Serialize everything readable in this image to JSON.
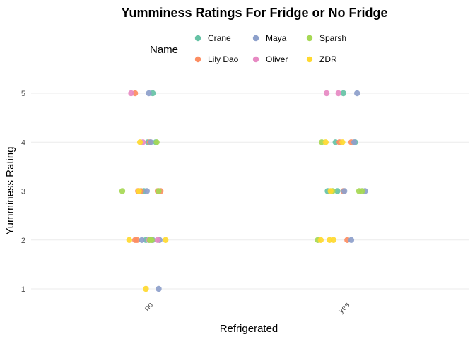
{
  "chart_data": {
    "type": "scatter",
    "title": "Yumminess Ratings For Fridge or No Fridge",
    "xlabel": "Refrigerated",
    "ylabel": "Yumminess Rating",
    "categories": [
      "no",
      "yes"
    ],
    "y_ticks": [
      "1",
      "2",
      "3",
      "4",
      "5"
    ],
    "ylim": [
      0.8,
      5.2
    ],
    "grid": "horizontal major only",
    "legend": {
      "title": "Name",
      "placement": "top",
      "entries": [
        "Crane",
        "Lily Dao",
        "Maya",
        "Oliver",
        "Sparsh",
        "ZDR"
      ]
    },
    "series": [
      {
        "name": "Crane",
        "color": "#66C2A5",
        "points": [
          {
            "x": "no",
            "jitter": 0.08,
            "y": 5
          },
          {
            "x": "no",
            "jitter": 0.03,
            "y": 4
          },
          {
            "x": "no",
            "jitter": -0.01,
            "y": 3
          },
          {
            "x": "no",
            "jitter": 0.01,
            "y": 2
          },
          {
            "x": "no",
            "jitter": 0.11,
            "y": 4
          },
          {
            "x": "yes",
            "jitter": 0.02,
            "y": 5
          },
          {
            "x": "yes",
            "jitter": -0.06,
            "y": 4
          },
          {
            "x": "yes",
            "jitter": 0.14,
            "y": 4
          },
          {
            "x": "yes",
            "jitter": -0.04,
            "y": 3
          },
          {
            "x": "yes",
            "jitter": -0.14,
            "y": 3
          }
        ]
      },
      {
        "name": "Lily Dao",
        "color": "#FC8D62",
        "points": [
          {
            "x": "no",
            "jitter": -0.1,
            "y": 5
          },
          {
            "x": "no",
            "jitter": 0.05,
            "y": 4
          },
          {
            "x": "no",
            "jitter": -0.04,
            "y": 3
          },
          {
            "x": "no",
            "jitter": 0.13,
            "y": 3
          },
          {
            "x": "no",
            "jitter": 0.16,
            "y": 3
          },
          {
            "x": "no",
            "jitter": -0.07,
            "y": 3
          },
          {
            "x": "no",
            "jitter": -0.08,
            "y": 2
          },
          {
            "x": "no",
            "jitter": -0.1,
            "y": 2
          },
          {
            "x": "yes",
            "jitter": -0.02,
            "y": 4
          },
          {
            "x": "yes",
            "jitter": 0.1,
            "y": 4
          },
          {
            "x": "yes",
            "jitter": 0.02,
            "y": 3
          },
          {
            "x": "yes",
            "jitter": 0.06,
            "y": 2
          }
        ]
      },
      {
        "name": "Maya",
        "color": "#8DA0CB",
        "points": [
          {
            "x": "no",
            "jitter": 0.04,
            "y": 5
          },
          {
            "x": "no",
            "jitter": 0.06,
            "y": 4
          },
          {
            "x": "no",
            "jitter": 0.02,
            "y": 3
          },
          {
            "x": "no",
            "jitter": -0.03,
            "y": 2
          },
          {
            "x": "no",
            "jitter": 0.08,
            "y": 2
          },
          {
            "x": "no",
            "jitter": 0.15,
            "y": 2
          },
          {
            "x": "no",
            "jitter": 0.14,
            "y": 1
          },
          {
            "x": "yes",
            "jitter": 0.16,
            "y": 5
          },
          {
            "x": "yes",
            "jitter": 0.13,
            "y": 4
          },
          {
            "x": "yes",
            "jitter": 0.03,
            "y": 3
          },
          {
            "x": "yes",
            "jitter": 0.24,
            "y": 3
          },
          {
            "x": "yes",
            "jitter": 0.1,
            "y": 2
          }
        ]
      },
      {
        "name": "Oliver",
        "color": "#E78AC3",
        "points": [
          {
            "x": "no",
            "jitter": -0.14,
            "y": 5
          },
          {
            "x": "no",
            "jitter": -0.02,
            "y": 4
          },
          {
            "x": "no",
            "jitter": 0.04,
            "y": 2
          },
          {
            "x": "no",
            "jitter": 0.13,
            "y": 2
          },
          {
            "x": "yes",
            "jitter": -0.15,
            "y": 5
          },
          {
            "x": "yes",
            "jitter": -0.03,
            "y": 5
          }
        ]
      },
      {
        "name": "Sparsh",
        "color": "#A6D854",
        "points": [
          {
            "x": "no",
            "jitter": -0.23,
            "y": 3
          },
          {
            "x": "no",
            "jitter": 0.12,
            "y": 4
          },
          {
            "x": "no",
            "jitter": 0.14,
            "y": 3
          },
          {
            "x": "no",
            "jitter": 0.05,
            "y": 2
          },
          {
            "x": "no",
            "jitter": 0.07,
            "y": 2
          },
          {
            "x": "yes",
            "jitter": -0.2,
            "y": 4
          },
          {
            "x": "yes",
            "jitter": -0.09,
            "y": 3
          },
          {
            "x": "yes",
            "jitter": 0.18,
            "y": 3
          },
          {
            "x": "yes",
            "jitter": 0.21,
            "y": 3
          },
          {
            "x": "yes",
            "jitter": -0.24,
            "y": 2
          }
        ]
      },
      {
        "name": "ZDR",
        "color": "#FFD92F",
        "points": [
          {
            "x": "no",
            "jitter": -0.05,
            "y": 4
          },
          {
            "x": "no",
            "jitter": -0.06,
            "y": 3
          },
          {
            "x": "no",
            "jitter": -0.16,
            "y": 2
          },
          {
            "x": "no",
            "jitter": 0.21,
            "y": 2
          },
          {
            "x": "no",
            "jitter": 0.01,
            "y": 1
          },
          {
            "x": "yes",
            "jitter": -0.16,
            "y": 4
          },
          {
            "x": "yes",
            "jitter": 0.01,
            "y": 4
          },
          {
            "x": "yes",
            "jitter": -0.11,
            "y": 3
          },
          {
            "x": "yes",
            "jitter": -0.21,
            "y": 2
          },
          {
            "x": "yes",
            "jitter": -0.12,
            "y": 2
          },
          {
            "x": "yes",
            "jitter": -0.08,
            "y": 2
          }
        ]
      }
    ]
  }
}
